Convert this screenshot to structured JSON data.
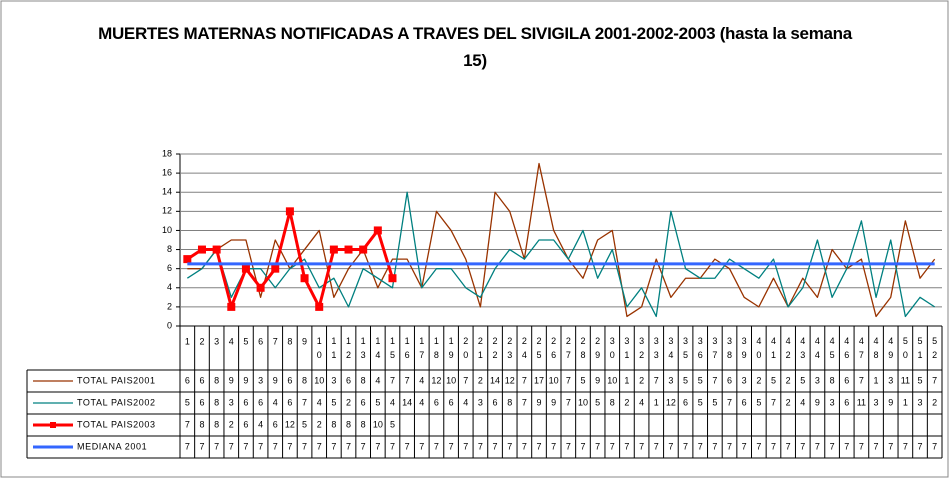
{
  "chart_data": {
    "type": "line",
    "title": "MUERTES MATERNAS NOTIFICADAS A TRAVES DEL SIVIGILA 2001-2002-2003 (hasta la semana 15)",
    "categories": [
      1,
      2,
      3,
      4,
      5,
      6,
      7,
      8,
      9,
      10,
      11,
      12,
      13,
      14,
      15,
      16,
      17,
      18,
      19,
      20,
      21,
      22,
      23,
      24,
      25,
      26,
      27,
      28,
      29,
      30,
      31,
      32,
      33,
      34,
      35,
      36,
      37,
      38,
      39,
      40,
      41,
      42,
      43,
      44,
      45,
      46,
      47,
      48,
      49,
      50,
      51,
      52
    ],
    "ylim": [
      0,
      18
    ],
    "yticks": [
      0,
      2,
      4,
      6,
      8,
      10,
      12,
      14,
      16,
      18
    ],
    "grid": true,
    "series": [
      {
        "name": "TOTAL PAIS2001",
        "color": "#993300",
        "values": [
          6,
          6,
          8,
          9,
          9,
          3,
          9,
          6,
          8,
          10,
          3,
          6,
          8,
          4,
          7,
          7,
          4,
          12,
          10,
          7,
          2,
          14,
          12,
          7,
          17,
          10,
          7,
          5,
          9,
          10,
          1,
          2,
          7,
          3,
          5,
          5,
          7,
          6,
          3,
          2,
          5,
          2,
          5,
          3,
          8,
          6,
          7,
          1,
          3,
          11,
          5,
          7
        ]
      },
      {
        "name": "TOTAL PAIS2002",
        "color": "#008080",
        "values": [
          5,
          6,
          8,
          3,
          6,
          6,
          4,
          6,
          7,
          4,
          5,
          2,
          6,
          5,
          4,
          14,
          4,
          6,
          6,
          4,
          3,
          6,
          8,
          7,
          9,
          9,
          7,
          10,
          5,
          8,
          2,
          4,
          1,
          12,
          6,
          5,
          5,
          7,
          6,
          5,
          7,
          2,
          4,
          9,
          3,
          6,
          11,
          3,
          9,
          1,
          3,
          2
        ]
      },
      {
        "name": "TOTAL PAIS2003",
        "color": "#ff0000",
        "marker": "square",
        "values": [
          7,
          8,
          8,
          2,
          6,
          4,
          6,
          12,
          5,
          2,
          8,
          8,
          8,
          10,
          5,
          null,
          null,
          null,
          null,
          null,
          null,
          null,
          null,
          null,
          null,
          null,
          null,
          null,
          null,
          null,
          null,
          null,
          null,
          null,
          null,
          null,
          null,
          null,
          null,
          null,
          null,
          null,
          null,
          null,
          null,
          null,
          null,
          null,
          null,
          null,
          null,
          null
        ]
      },
      {
        "name": "MEDIANA 2001",
        "color": "#3366ff",
        "values": [
          6.5,
          6.5,
          6.5,
          6.5,
          6.5,
          6.5,
          6.5,
          6.5,
          6.5,
          6.5,
          6.5,
          6.5,
          6.5,
          6.5,
          6.5,
          6.5,
          6.5,
          6.5,
          6.5,
          6.5,
          6.5,
          6.5,
          6.5,
          6.5,
          6.5,
          6.5,
          6.5,
          6.5,
          6.5,
          6.5,
          6.5,
          6.5,
          6.5,
          6.5,
          6.5,
          6.5,
          6.5,
          6.5,
          6.5,
          6.5,
          6.5,
          6.5,
          6.5,
          6.5,
          6.5,
          6.5,
          6.5,
          6.5,
          6.5,
          6.5,
          6.5,
          6.5
        ],
        "value_labels": [
          "7",
          "7",
          "7",
          "7",
          "7",
          "7",
          "7",
          "7",
          "7",
          "7",
          "7",
          "7",
          "7",
          "7",
          "7",
          "7",
          "7",
          "7",
          "7",
          "7",
          "7",
          "7",
          "7",
          "7",
          "7",
          "7",
          "7",
          "7",
          "7",
          "7",
          "7",
          "7",
          "7",
          "7",
          "7",
          "7",
          "7",
          "7",
          "7",
          "7",
          "7",
          "7",
          "7",
          "7",
          "7",
          "7",
          "7",
          "7",
          "7",
          "7",
          "7",
          "7"
        ]
      }
    ]
  }
}
